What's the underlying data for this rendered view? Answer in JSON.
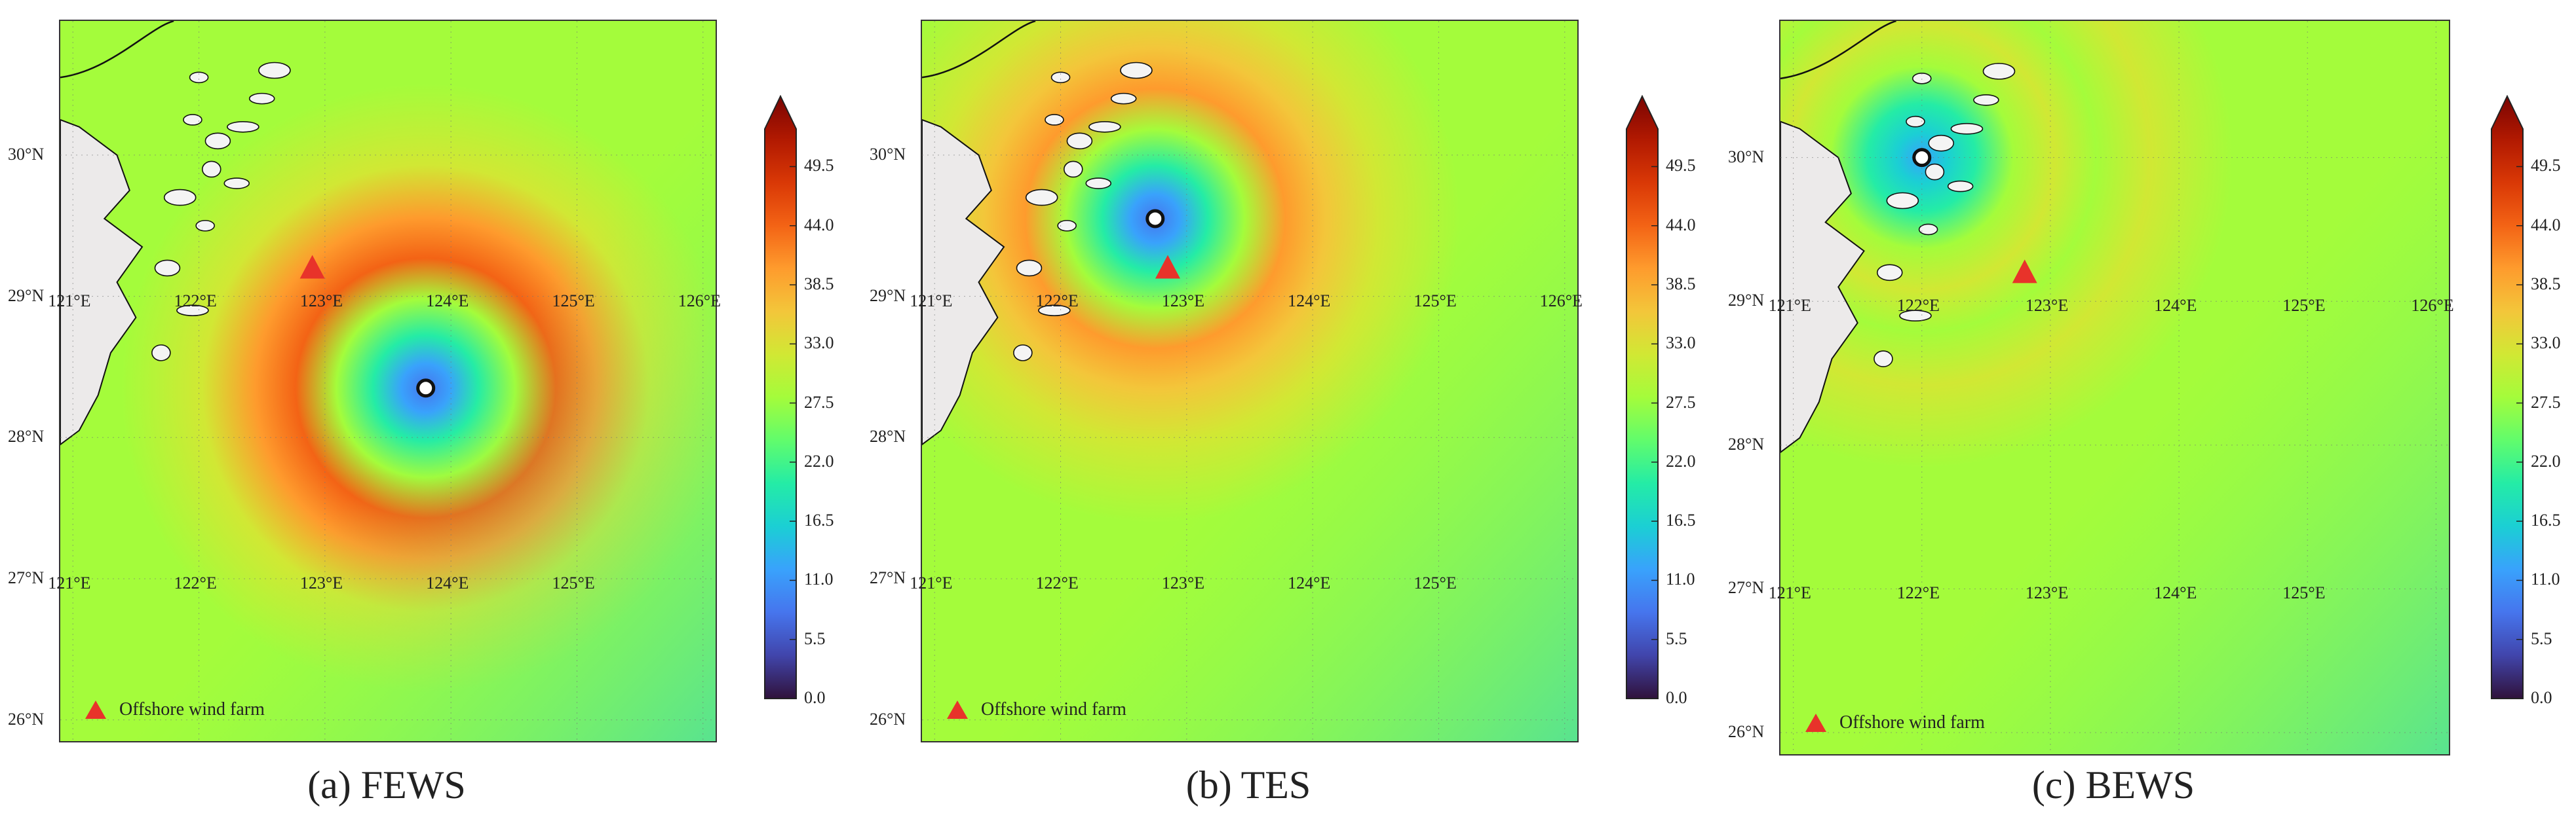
{
  "colorbar_ticks": [
    "0.0",
    "5.5",
    "11.0",
    "16.5",
    "22.0",
    "27.5",
    "33.0",
    "38.5",
    "44.0",
    "49.5"
  ],
  "colorbar_range": [
    0,
    53
  ],
  "colormap": [
    "#30123b",
    "#4145ab",
    "#4675ed",
    "#39a2fc",
    "#1bcfd4",
    "#24eca6",
    "#61fc6c",
    "#a4fc3b",
    "#d1e834",
    "#f3c63a",
    "#fe9b2d",
    "#f36315",
    "#d93806",
    "#b11901",
    "#7a0402"
  ],
  "legend_label": "Offshore wind farm",
  "marker_colors": {
    "wind_farm": "#e8332a",
    "typhoon_center": "#ffffff"
  },
  "panels": [
    {
      "caption": "(a) FEWS",
      "lat_labels": [
        "30°N",
        "29°N",
        "28°N",
        "27°N",
        "26°N"
      ],
      "lon_labels_upper": [
        "121°E",
        "122°E",
        "123°E",
        "124°E",
        "125°E",
        "126°E"
      ],
      "lon_labels_lower": [
        "121°E",
        "122°E",
        "123°E",
        "124°E",
        "125°E"
      ],
      "typhoon_center": {
        "lon": 123.8,
        "lat": 28.35
      },
      "wind_farm": {
        "lon": 122.9,
        "lat": 29.2
      },
      "eye_speed": 8,
      "ring_speed": 40
    },
    {
      "caption": "(b) TES",
      "lat_labels": [
        "30°N",
        "29°N",
        "28°N",
        "27°N",
        "26°N"
      ],
      "lon_labels_upper": [
        "121°E",
        "122°E",
        "123°E",
        "124°E",
        "125°E",
        "126°E"
      ],
      "lon_labels_lower": [
        "121°E",
        "122°E",
        "123°E",
        "124°E",
        "125°E"
      ],
      "typhoon_center": {
        "lon": 122.75,
        "lat": 29.55
      },
      "wind_farm": {
        "lon": 122.85,
        "lat": 29.2
      },
      "eye_speed": 9,
      "ring_speed": 36
    },
    {
      "caption": "(c) BEWS",
      "lat_labels": [
        "30°N",
        "29°N",
        "28°N",
        "27°N",
        "26°N"
      ],
      "lon_labels_upper": [
        "121°E",
        "122°E",
        "123°E",
        "124°E",
        "125°E",
        "126°E"
      ],
      "lon_labels_lower": [
        "121°E",
        "122°E",
        "123°E",
        "124°E",
        "125°E"
      ],
      "typhoon_center": {
        "lon": 122.0,
        "lat": 30.0
      },
      "wind_farm": {
        "lon": 122.8,
        "lat": 29.2
      },
      "eye_speed": 10,
      "ring_speed": 30
    }
  ]
}
